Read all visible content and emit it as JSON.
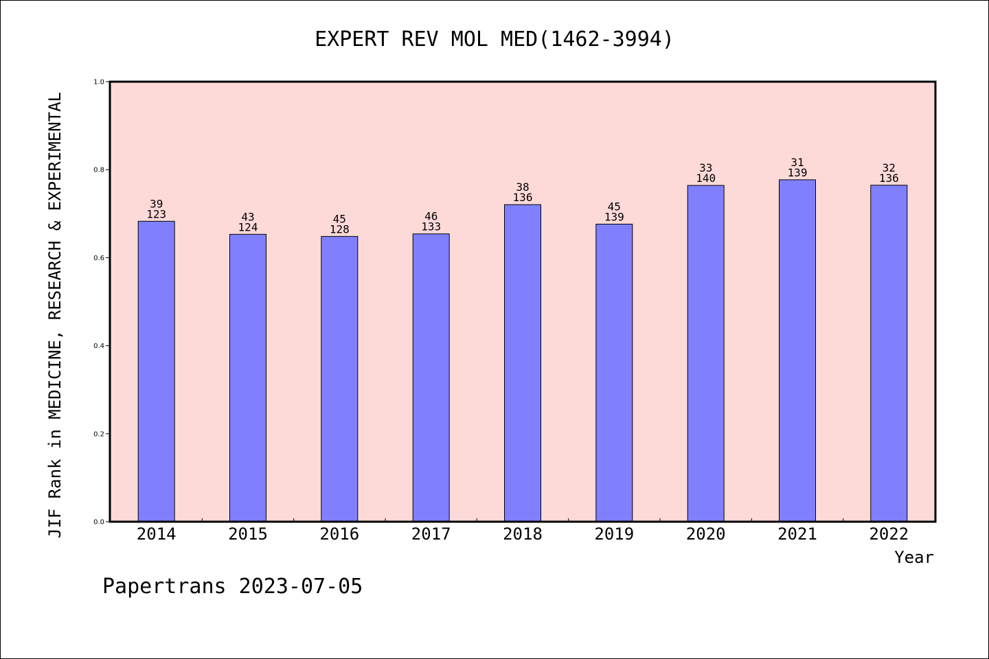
{
  "chart_data": {
    "type": "bar",
    "title": "EXPERT REV MOL MED(1462-3994)",
    "xlabel": "Year",
    "ylabel": "JIF Rank in MEDICINE, RESEARCH & EXPERIMENTAL",
    "ylim": [
      0,
      1.0
    ],
    "yticks": [
      "0.0",
      "0.2",
      "0.4",
      "0.6",
      "0.8",
      "1.0"
    ],
    "grid": false,
    "categories": [
      "2014",
      "2015",
      "2016",
      "2017",
      "2018",
      "2019",
      "2020",
      "2021",
      "2022"
    ],
    "values": [
      0.6829,
      0.6532,
      0.6484,
      0.6541,
      0.7206,
      0.6763,
      0.7643,
      0.777,
      0.7647
    ],
    "ranks": [
      "39",
      "43",
      "45",
      "46",
      "38",
      "45",
      "33",
      "31",
      "32"
    ],
    "totals": [
      "123",
      "124",
      "128",
      "133",
      "136",
      "139",
      "140",
      "139",
      "136"
    ],
    "colors": {
      "plot_background": "#fddad8",
      "bar_fill": "#8080ff",
      "bar_stroke": "#000000"
    }
  },
  "footer": "Papertrans 2023-07-05"
}
